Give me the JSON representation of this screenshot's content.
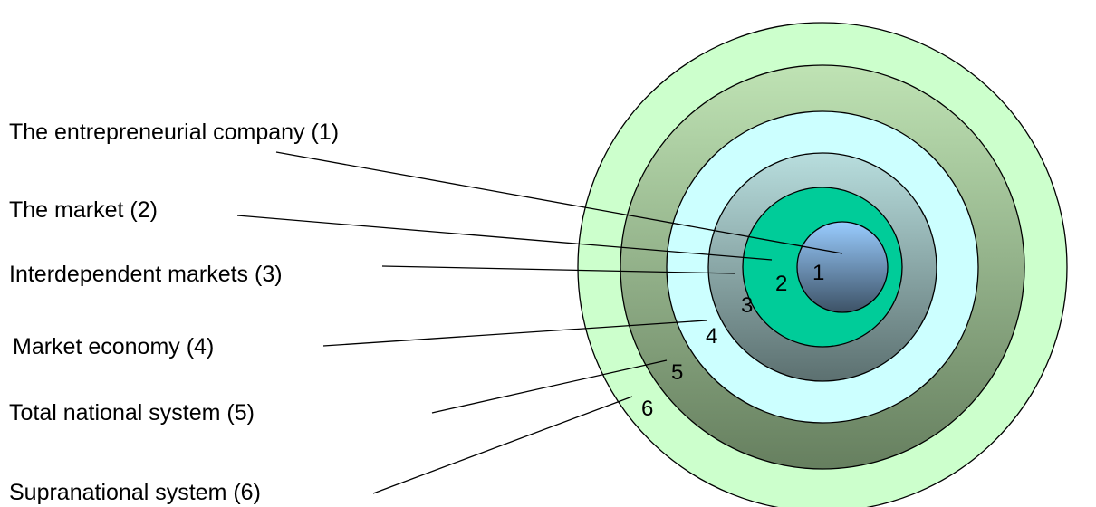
{
  "levels": [
    {
      "number": "1",
      "label": "The entrepreneurial company (1)"
    },
    {
      "number": "2",
      "label": "The market (2)"
    },
    {
      "number": "3",
      "label": "Interdependent markets (3)"
    },
    {
      "number": "4",
      "label": "Market economy (4)"
    },
    {
      "number": "5",
      "label": "Total national system (5)"
    },
    {
      "number": "6",
      "label": "Supranational system (6)"
    }
  ],
  "colors": {
    "ring6": "#ccffcc",
    "ring5_light": "#bfe3b4",
    "ring5_dark": "#667f5f",
    "ring4": "#ccffff",
    "ring3_light": "#b8dede",
    "ring3_dark": "#5c7070",
    "ring2": "#00cc99",
    "core_light": "#99ccff",
    "core_dark": "#3d5266"
  }
}
